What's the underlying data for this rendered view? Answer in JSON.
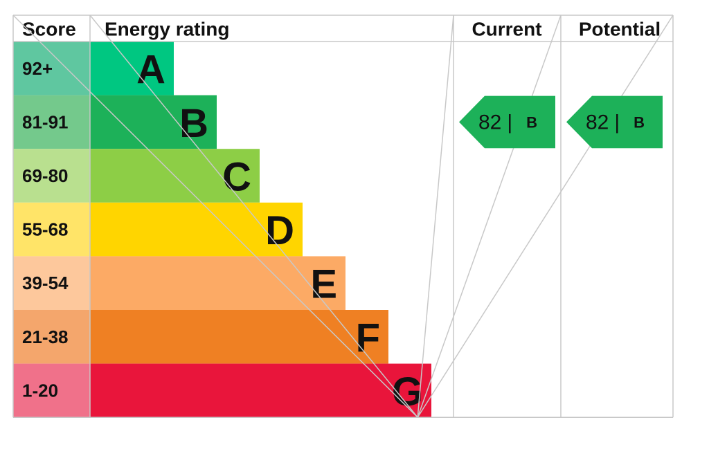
{
  "header": {
    "score": "Score",
    "rating": "Energy rating",
    "current": "Current",
    "potential": "Potential"
  },
  "bands": [
    {
      "score": "92+",
      "letter": "A",
      "color": "#00c781",
      "score_color": "#5fc7a0"
    },
    {
      "score": "81-91",
      "letter": "B",
      "color": "#1db159",
      "score_color": "#74c98c"
    },
    {
      "score": "69-80",
      "letter": "C",
      "color": "#8dce46",
      "score_color": "#b9e08f"
    },
    {
      "score": "55-68",
      "letter": "D",
      "color": "#ffd500",
      "score_color": "#ffe468"
    },
    {
      "score": "39-54",
      "letter": "E",
      "color": "#fcaa65",
      "score_color": "#fdc89c"
    },
    {
      "score": "21-38",
      "letter": "F",
      "color": "#ef8023",
      "score_color": "#f4a66c"
    },
    {
      "score": "1-20",
      "letter": "G",
      "color": "#e9153b",
      "score_color": "#f0718a"
    }
  ],
  "current": {
    "value": "82",
    "separator": "|",
    "letter": "B"
  },
  "potential": {
    "value": "82",
    "separator": "|",
    "letter": "B"
  }
}
